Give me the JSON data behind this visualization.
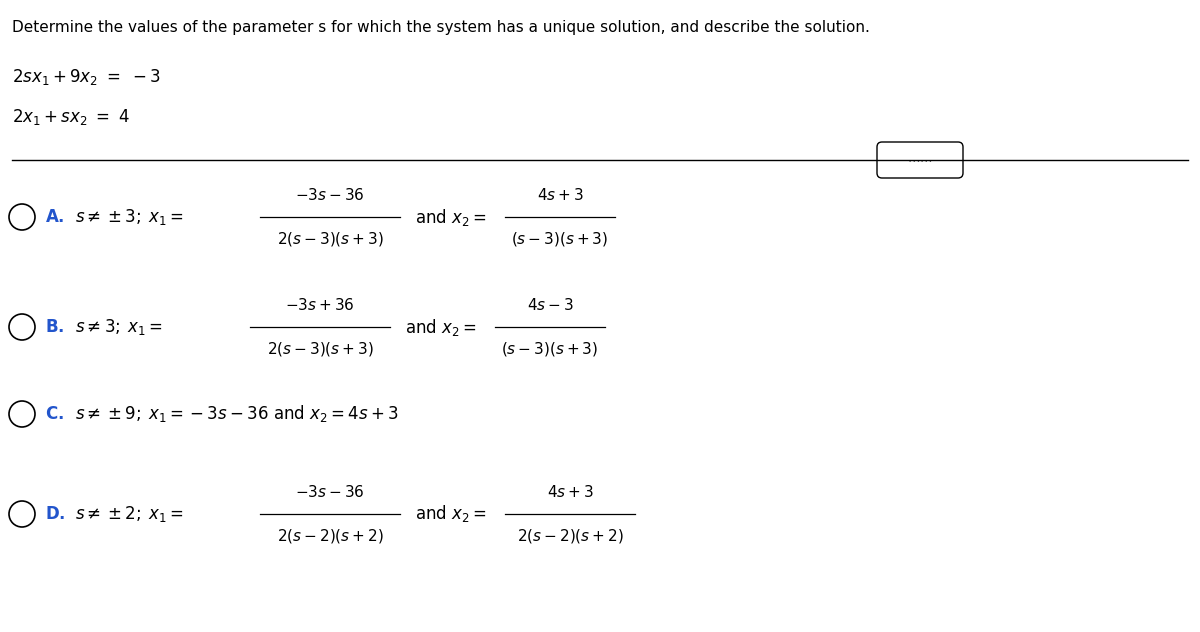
{
  "title": "Determine the values of the parameter s for which the system has a unique solution, and describe the solution.",
  "eq1": "$2sx_1 + 9x_2 = -3$",
  "eq2": "$2x_1 + sx_2 = 4$",
  "background_color": "#ffffff",
  "text_color": "#000000",
  "option_A_label": "A.",
  "option_A_condition": "$s \\neq \\pm 3;\\;$",
  "option_A_x1_num": "$-3s - 36$",
  "option_A_x1_den": "$2(s-3)(s+3)$",
  "option_A_and": "and $x_2 = $",
  "option_A_x2_num": "$4s + 3$",
  "option_A_x2_den": "$(s-3)(s+3)$",
  "option_B_label": "B.",
  "option_B_condition": "$s \\neq 3;\\;$",
  "option_B_x1_num": "$-3s + 36$",
  "option_B_x1_den": "$2(s-3)(s+3)$",
  "option_B_and": "and $x_2 = $",
  "option_B_x2_num": "$4s - 3$",
  "option_B_x2_den": "$(s-3)(s+3)$",
  "option_C_label": "C.",
  "option_C_text": "$s \\neq \\pm 9;\\; x_1 = -3s - 36$ and $x_2 = 4s + 3$",
  "option_D_label": "D.",
  "option_D_condition": "$s \\neq \\pm 2;\\;$",
  "option_D_x1_num": "$-3s - 36$",
  "option_D_x1_den": "$2(s-2)(s+2)$",
  "option_D_and": "and $x_2 = $",
  "option_D_x2_num": "$4s + 3$",
  "option_D_x2_den": "$2(s-2)(s+2)$",
  "dots": ".....",
  "fig_width": 12.0,
  "fig_height": 6.32,
  "dpi": 100
}
